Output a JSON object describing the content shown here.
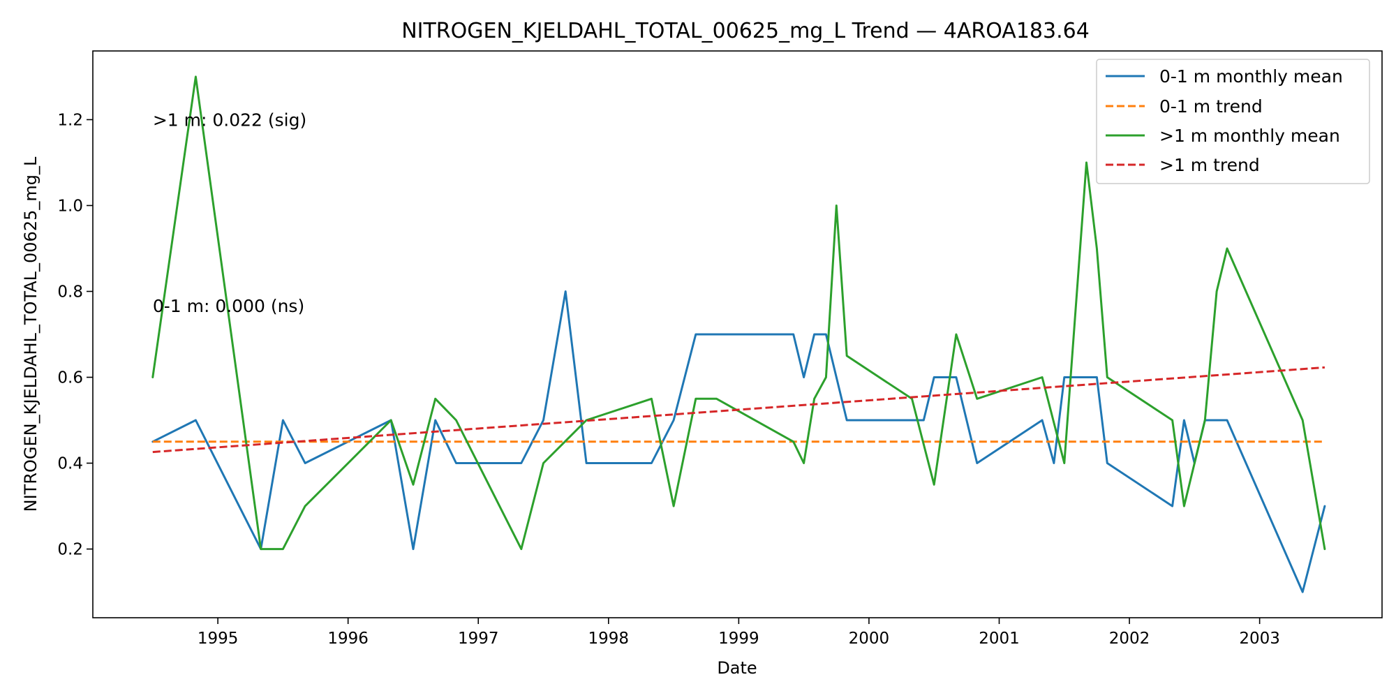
{
  "chart_data": {
    "type": "line",
    "title": "NITROGEN_KJELDAHL_TOTAL_00625_mg_L Trend — 4AROA183.64",
    "xlabel": "Date",
    "ylabel": "NITROGEN_KJELDAHL_TOTAL_00625_mg_L",
    "xlim": [
      1994.04,
      2003.94
    ],
    "ylim": [
      0.04,
      1.36
    ],
    "x_ticks": [
      1995,
      1996,
      1997,
      1998,
      1999,
      2000,
      2001,
      2002,
      2003
    ],
    "x_tick_labels": [
      "1995",
      "1996",
      "1997",
      "1998",
      "1999",
      "2000",
      "2001",
      "2002",
      "2003"
    ],
    "y_ticks": [
      0.2,
      0.4,
      0.6,
      0.8,
      1.0,
      1.2
    ],
    "y_tick_labels": [
      "0.2",
      "0.4",
      "0.6",
      "0.8",
      "1.0",
      "1.2"
    ],
    "grid": false,
    "legend_position": "top-right",
    "series": [
      {
        "name": "0-1 m monthly mean",
        "color": "#1f77b4",
        "style": "solid",
        "x": [
          1994.5,
          1994.83,
          1995.33,
          1995.5,
          1995.67,
          1996.33,
          1996.5,
          1996.67,
          1996.83,
          1997.33,
          1997.5,
          1997.67,
          1997.83,
          1998.33,
          1998.5,
          1998.67,
          1999.42,
          1999.5,
          1999.58,
          1999.67,
          1999.83,
          2000.42,
          2000.5,
          2000.67,
          2000.83,
          2001.33,
          2001.42,
          2001.5,
          2001.75,
          2001.83,
          2002.33,
          2002.42,
          2002.5,
          2002.58,
          2002.75,
          2003.33,
          2003.5
        ],
        "values": [
          0.45,
          0.5,
          0.2,
          0.5,
          0.4,
          0.5,
          0.2,
          0.5,
          0.4,
          0.4,
          0.5,
          0.8,
          0.4,
          0.4,
          0.5,
          0.7,
          0.7,
          0.6,
          0.7,
          0.7,
          0.5,
          0.5,
          0.6,
          0.6,
          0.4,
          0.5,
          0.4,
          0.6,
          0.6,
          0.4,
          0.3,
          0.5,
          0.4,
          0.5,
          0.5,
          0.1,
          0.3
        ]
      },
      {
        "name": "0-1 m trend",
        "color": "#ff7f0e",
        "style": "dashed",
        "x": [
          1994.5,
          2003.5
        ],
        "values": [
          0.45,
          0.45
        ]
      },
      {
        "name": ">1 m monthly mean",
        "color": "#2ca02c",
        "style": "solid",
        "x": [
          1994.5,
          1994.83,
          1995.33,
          1995.5,
          1995.67,
          1996.33,
          1996.5,
          1996.67,
          1996.83,
          1997.33,
          1997.5,
          1997.83,
          1998.33,
          1998.5,
          1998.67,
          1998.83,
          1999.42,
          1999.5,
          1999.58,
          1999.67,
          1999.75,
          1999.83,
          2000.33,
          2000.5,
          2000.67,
          2000.83,
          2001.33,
          2001.5,
          2001.67,
          2001.75,
          2001.83,
          2002.33,
          2002.42,
          2002.58,
          2002.67,
          2002.75,
          2003.33,
          2003.5
        ],
        "values": [
          0.6,
          1.3,
          0.2,
          0.2,
          0.3,
          0.5,
          0.35,
          0.55,
          0.5,
          0.2,
          0.4,
          0.5,
          0.55,
          0.3,
          0.55,
          0.55,
          0.45,
          0.4,
          0.55,
          0.6,
          1.0,
          0.65,
          0.55,
          0.35,
          0.7,
          0.55,
          0.6,
          0.4,
          1.1,
          0.9,
          0.6,
          0.5,
          0.3,
          0.5,
          0.8,
          0.9,
          0.5,
          0.2
        ]
      },
      {
        "name": ">1 m trend",
        "color": "#d62728",
        "style": "dashed",
        "x": [
          1994.5,
          2003.5
        ],
        "values": [
          0.426,
          0.623
        ]
      }
    ],
    "annotations": [
      {
        "text": ">1 m: 0.022 (sig)",
        "x": 1994.5,
        "y": 1.2
      },
      {
        "text": "0-1 m: 0.000 (ns)",
        "x": 1994.5,
        "y": 0.767
      }
    ]
  }
}
